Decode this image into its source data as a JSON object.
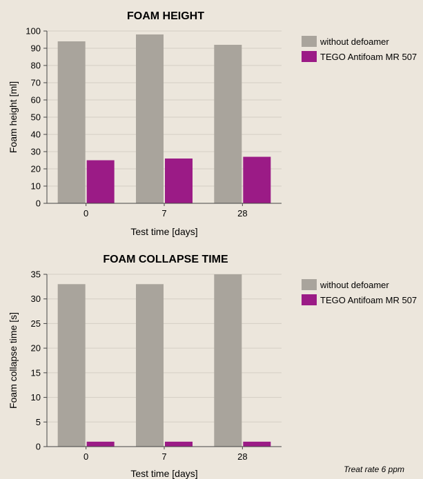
{
  "chart_data": [
    {
      "type": "bar",
      "title": "FOAM HEIGHT",
      "xlabel": "Test time [days]",
      "ylabel": "Foam height [ml]",
      "categories": [
        "0",
        "7",
        "28"
      ],
      "ylim": [
        0,
        100
      ],
      "yticks": [
        0,
        10,
        20,
        30,
        40,
        50,
        60,
        70,
        80,
        90,
        100
      ],
      "grid": true,
      "legend": "right",
      "series": [
        {
          "name": "without defoamer",
          "color": "#a9a49c",
          "values": [
            94,
            98,
            92
          ]
        },
        {
          "name": "TEGO Antifoam MR 507",
          "color": "#9b1b86",
          "values": [
            25,
            26,
            27
          ]
        }
      ]
    },
    {
      "type": "bar",
      "title": "FOAM COLLAPSE TIME",
      "xlabel": "Test time [days]",
      "ylabel": "Foam collapse time [s]",
      "categories": [
        "0",
        "7",
        "28"
      ],
      "ylim": [
        0,
        35
      ],
      "yticks": [
        0,
        5,
        10,
        15,
        20,
        25,
        30,
        35
      ],
      "grid": true,
      "legend": "right",
      "series": [
        {
          "name": "without defoamer",
          "color": "#a9a49c",
          "values": [
            33,
            33,
            35
          ]
        },
        {
          "name": "TEGO Antifoam MR 507",
          "color": "#9b1b86",
          "values": [
            1,
            1,
            1
          ]
        }
      ]
    }
  ],
  "footnote": "Treat rate 6 ppm"
}
